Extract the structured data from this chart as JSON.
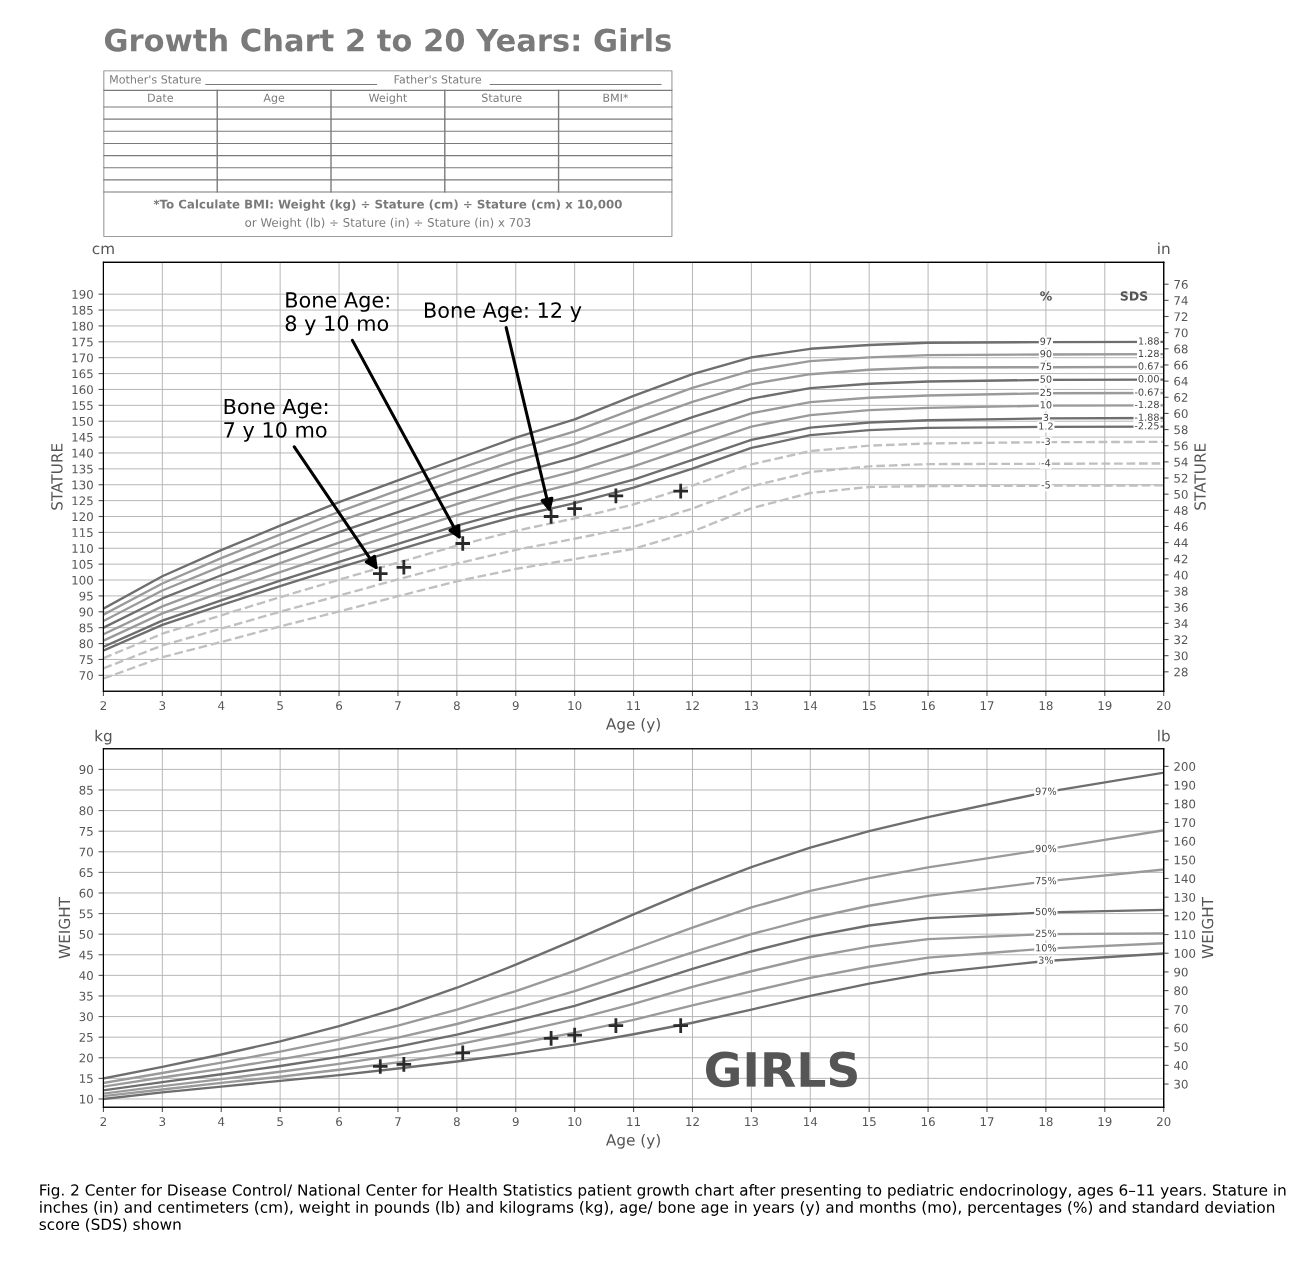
{
  "chart_data": [
    {
      "type": "other",
      "title": "Growth Chart 2 to 20 Years: Girls",
      "annotations": [
        "Mother's Stature",
        "Father's Stature",
        "Date",
        "Age",
        "Weight",
        "Stature",
        "BMI*",
        "*To Calculate BMI: Weight (kg) ÷ Stature (cm) ÷ Stature (cm) x 10,000",
        "or Weight (lb) ÷ Stature (in) ÷ Stature (in) x 703"
      ]
    },
    {
      "type": "line",
      "xlabel": "Age (y)",
      "ylabel": "STATURE",
      "y2label": "STATURE",
      "x": [
        2,
        3,
        4,
        5,
        6,
        7,
        8,
        9,
        10,
        11,
        12,
        13,
        14,
        15,
        16,
        18,
        20
      ],
      "xlim": [
        2,
        20
      ],
      "xticks": [
        2,
        3,
        4,
        5,
        6,
        7,
        8,
        9,
        10,
        11,
        12,
        13,
        14,
        15,
        16,
        17,
        18,
        19,
        20
      ],
      "ylim": [
        65,
        200
      ],
      "yticks": [
        70,
        75,
        80,
        85,
        90,
        95,
        100,
        105,
        110,
        115,
        120,
        125,
        130,
        135,
        140,
        145,
        150,
        155,
        160,
        165,
        170,
        175,
        180,
        185,
        190
      ],
      "y2lim": [
        25.6,
        78.7
      ],
      "y2ticks": [
        28,
        30,
        32,
        34,
        36,
        38,
        40,
        42,
        44,
        46,
        48,
        50,
        52,
        54,
        56,
        58,
        60,
        62,
        64,
        66,
        68,
        70,
        72,
        74,
        76
      ],
      "grid": true,
      "series": [
        {
          "name": "97",
          "color": "#6e6e6e",
          "values": [
            91.0,
            101.2,
            109.4,
            117.1,
            124.5,
            131.4,
            138.1,
            144.8,
            150.6,
            158.0,
            164.8,
            170.1,
            172.8,
            174.0,
            174.7,
            174.9,
            175.0
          ]
        },
        {
          "name": "90",
          "color": "#9a9a9a",
          "values": [
            89.1,
            98.9,
            106.9,
            114.3,
            121.5,
            128.2,
            134.8,
            141.2,
            146.8,
            153.8,
            160.5,
            165.9,
            168.9,
            170.1,
            170.8,
            171.0,
            171.1
          ]
        },
        {
          "name": "75",
          "color": "#9a9a9a",
          "values": [
            87.1,
            96.7,
            104.3,
            111.5,
            118.5,
            125.0,
            131.4,
            137.5,
            142.9,
            149.5,
            156.1,
            161.7,
            164.8,
            166.2,
            166.9,
            167.0,
            167.1
          ]
        },
        {
          "name": "50",
          "color": "#6e6e6e",
          "values": [
            85.0,
            94.2,
            101.5,
            108.4,
            115.1,
            121.4,
            127.6,
            133.5,
            138.6,
            144.8,
            151.3,
            157.1,
            160.4,
            161.8,
            162.5,
            163.0,
            163.1
          ]
        },
        {
          "name": "25",
          "color": "#9a9a9a",
          "values": [
            82.9,
            91.7,
            98.7,
            105.3,
            111.8,
            117.9,
            123.9,
            129.5,
            134.3,
            140.1,
            146.5,
            152.5,
            156.0,
            157.4,
            158.1,
            158.8,
            158.9
          ]
        },
        {
          "name": "10",
          "color": "#9a9a9a",
          "values": [
            80.9,
            89.5,
            96.1,
            102.5,
            108.7,
            114.6,
            120.4,
            125.8,
            130.4,
            135.8,
            142.1,
            148.3,
            151.9,
            153.5,
            154.2,
            154.9,
            155.0
          ]
        },
        {
          "name": "3",
          "color": "#6e6e6e",
          "values": [
            79.0,
            87.2,
            93.6,
            99.8,
            105.7,
            111.4,
            117.1,
            122.2,
            126.6,
            131.6,
            137.8,
            144.1,
            148.0,
            149.6,
            150.3,
            150.9,
            151.0
          ]
        },
        {
          "name": "1.2",
          "color": "#6e6e6e",
          "values": [
            77.8,
            85.9,
            92.1,
            98.1,
            103.9,
            109.5,
            115.0,
            120.0,
            124.2,
            129.1,
            135.1,
            141.6,
            145.6,
            147.2,
            147.9,
            148.2,
            148.3
          ]
        },
        {
          "name": "-3",
          "color": "#c0c0c0",
          "line_style": "dashed",
          "values": [
            75.4,
            83.1,
            88.9,
            94.6,
            100.1,
            105.5,
            110.8,
            115.5,
            119.4,
            123.8,
            129.7,
            136.4,
            140.6,
            142.3,
            143.0,
            143.4,
            143.5
          ]
        },
        {
          "name": "-4",
          "color": "#c0c0c0",
          "line_style": "dashed",
          "values": [
            72.2,
            79.4,
            84.7,
            90.0,
            95.1,
            100.2,
            105.2,
            109.5,
            113.0,
            116.8,
            122.5,
            129.5,
            134.0,
            135.8,
            136.5,
            136.6,
            136.7
          ]
        },
        {
          "name": "-5",
          "color": "#c0c0c0",
          "line_style": "dashed",
          "values": [
            69.0,
            75.7,
            80.5,
            85.4,
            90.1,
            94.9,
            99.6,
            103.5,
            106.6,
            109.8,
            115.3,
            122.6,
            127.4,
            129.3,
            129.6,
            129.7,
            129.8
          ]
        },
        {
          "type": "scatter",
          "marker": "cross",
          "color": "#2a2a2a",
          "x": [
            6.7,
            7.1,
            8.1,
            9.6,
            10.0,
            10.7,
            11.8
          ],
          "values": [
            102,
            104,
            111.5,
            120,
            122.5,
            126.5,
            128
          ]
        }
      ],
      "annotations": [
        "%",
        "SDS",
        "cm",
        "in",
        {
          "text": "1.88",
          "x": 20,
          "y": 175.0
        },
        {
          "text": "1.28",
          "x": 20,
          "y": 171.1
        },
        {
          "text": "0.67",
          "x": 20,
          "y": 167.1
        },
        {
          "text": "0.00",
          "x": 20,
          "y": 163.1
        },
        {
          "text": "-0.67",
          "x": 20,
          "y": 158.9
        },
        {
          "text": "-1.28",
          "x": 20,
          "y": 155.0
        },
        {
          "text": "-1.88",
          "x": 20,
          "y": 151.0
        },
        {
          "text": "-2.25",
          "x": 20,
          "y": 148.3
        },
        {
          "text": "Bone Age:\n7 y 10 mo",
          "x": 6.7,
          "y": 102
        },
        {
          "text": "Bone Age:\n8 y 10 mo",
          "x": 8.1,
          "y": 111.5
        },
        {
          "text": "Bone Age: 12 y",
          "x": 9.6,
          "y": 120
        }
      ]
    },
    {
      "type": "line",
      "xlabel": "Age (y)",
      "ylabel": "WEIGHT",
      "y2label": "WEIGHT",
      "x": [
        2,
        3,
        4,
        5,
        6,
        7,
        8,
        9,
        10,
        11,
        12,
        13,
        14,
        15,
        16,
        18,
        20
      ],
      "xlim": [
        2,
        20
      ],
      "xticks": [
        2,
        3,
        4,
        5,
        6,
        7,
        8,
        9,
        10,
        11,
        12,
        13,
        14,
        15,
        16,
        17,
        18,
        19,
        20
      ],
      "ylim": [
        8,
        95
      ],
      "yticks": [
        10,
        15,
        20,
        25,
        30,
        35,
        40,
        45,
        50,
        55,
        60,
        65,
        70,
        75,
        80,
        85,
        90
      ],
      "y2lim": [
        17.6,
        209.4
      ],
      "y2ticks": [
        30,
        40,
        50,
        60,
        70,
        80,
        90,
        100,
        110,
        120,
        130,
        140,
        150,
        160,
        170,
        180,
        190,
        200
      ],
      "grid": true,
      "series": [
        {
          "name": "97%",
          "color": "#6e6e6e",
          "values": [
            15.0,
            17.8,
            20.8,
            24.0,
            27.7,
            32.0,
            37.0,
            42.6,
            48.6,
            54.8,
            60.8,
            66.3,
            71.0,
            75.0,
            78.4,
            84.5,
            89.2
          ]
        },
        {
          "name": "90%",
          "color": "#9a9a9a",
          "values": [
            13.9,
            16.3,
            18.8,
            21.5,
            24.4,
            27.8,
            31.7,
            36.2,
            41.1,
            46.4,
            51.6,
            56.5,
            60.5,
            63.6,
            66.2,
            70.6,
            75.2
          ]
        },
        {
          "name": "75%",
          "color": "#9a9a9a",
          "values": [
            13.0,
            15.2,
            17.3,
            19.6,
            22.1,
            24.9,
            28.2,
            32.0,
            36.2,
            40.9,
            45.6,
            50.0,
            53.8,
            56.9,
            59.3,
            62.8,
            65.7
          ]
        },
        {
          "name": "50%",
          "color": "#6e6e6e",
          "values": [
            12.1,
            14.1,
            16.0,
            18.0,
            20.2,
            22.7,
            25.6,
            29.0,
            32.6,
            37.0,
            41.6,
            45.8,
            49.4,
            52.1,
            53.9,
            55.3,
            55.9
          ]
        },
        {
          "name": "25%",
          "color": "#9a9a9a",
          "values": [
            11.3,
            13.1,
            14.8,
            16.6,
            18.5,
            20.7,
            23.2,
            26.1,
            29.3,
            33.1,
            37.2,
            41.0,
            44.4,
            47.0,
            48.8,
            50.0,
            50.2
          ]
        },
        {
          "name": "10%",
          "color": "#9a9a9a",
          "values": [
            10.7,
            12.3,
            13.9,
            15.4,
            17.1,
            18.9,
            21.0,
            23.4,
            26.1,
            29.2,
            32.7,
            36.1,
            39.4,
            42.1,
            44.3,
            46.5,
            47.8
          ]
        },
        {
          "name": "3%",
          "color": "#6e6e6e",
          "values": [
            10.0,
            11.6,
            13.0,
            14.4,
            15.8,
            17.4,
            19.1,
            21.0,
            23.2,
            25.7,
            28.5,
            31.7,
            35.0,
            38.0,
            40.5,
            43.5,
            45.3
          ]
        },
        {
          "type": "scatter",
          "marker": "cross",
          "color": "#2a2a2a",
          "x": [
            6.7,
            7.1,
            8.1,
            9.6,
            10.0,
            10.7,
            11.8
          ],
          "values": [
            17.9,
            18.4,
            21.2,
            24.7,
            25.5,
            27.8,
            27.8
          ]
        }
      ],
      "annotations": [
        "GIRLS",
        "kg",
        "lb",
        "Fig. 2 Center for Disease Control/ National Center for Health Statistics patient growth chart after presenting to pediatric endocrinology, ages 6–11 years. Stature in inches (in) and centimeters (cm), weight in pounds (lb) and kilograms (kg), age/ bone age in years (y) and months (mo), percentages (%) and standard deviation score (SDS) shown"
      ]
    }
  ]
}
